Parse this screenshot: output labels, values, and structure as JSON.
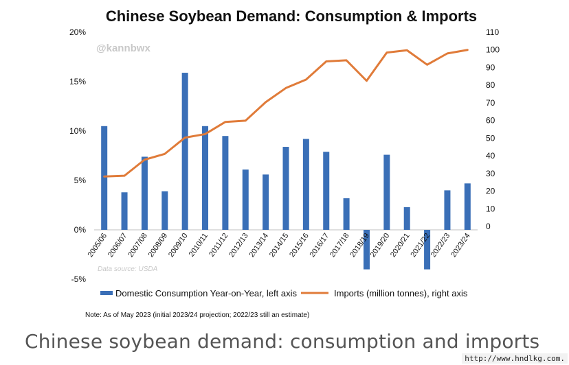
{
  "chart_data": {
    "type": "bar+line",
    "title": "Chinese Soybean Demand: Consumption & Imports",
    "watermark": "@kannbwx",
    "source": "Data source: USDA",
    "note": "Note: As of May 2023 (initial 2023/24 projection; 2022/23 still an estimate)",
    "categories": [
      "2005/06",
      "2006/07",
      "2007/08",
      "2008/09",
      "2009/10",
      "2010/11",
      "2011/12",
      "2012/13",
      "2013/14",
      "2014/15",
      "2015/16",
      "2016/17",
      "2017/18",
      "2018/19",
      "2019/20",
      "2020/21",
      "2021/22",
      "2022/23",
      "2023/24"
    ],
    "series": [
      {
        "name": "Domestic Consumption Year-on-Year, left axis",
        "type": "bar",
        "axis": "left",
        "color": "#3a6fb7",
        "values": [
          10.5,
          3.8,
          7.4,
          3.9,
          15.9,
          10.5,
          9.5,
          6.1,
          5.6,
          8.4,
          9.2,
          7.9,
          3.2,
          -4.0,
          7.6,
          2.3,
          -4.0,
          4.0,
          4.7
        ]
      },
      {
        "name": "Imports (million tonnes), right axis",
        "type": "line",
        "axis": "right",
        "color": "#e07b39",
        "values": [
          28.3,
          28.7,
          37.8,
          41.1,
          50.3,
          52.3,
          59.2,
          59.9,
          70.4,
          78.4,
          83.2,
          93.5,
          94.1,
          82.5,
          98.5,
          99.8,
          91.6,
          98.0,
          100.0
        ]
      }
    ],
    "left_axis": {
      "ylim": [
        -5,
        20
      ],
      "ticks": [
        "-5%",
        "0%",
        "5%",
        "10%",
        "15%",
        "20%"
      ],
      "tick_values": [
        -5,
        0,
        5,
        10,
        15,
        20
      ]
    },
    "right_axis": {
      "ylim": [
        0,
        110
      ],
      "ticks": [
        "0",
        "10",
        "20",
        "30",
        "40",
        "50",
        "60",
        "70",
        "80",
        "90",
        "100",
        "110"
      ],
      "tick_values": [
        0,
        10,
        20,
        30,
        40,
        50,
        60,
        70,
        80,
        90,
        100,
        110
      ]
    },
    "grid": false,
    "legend_position": "bottom"
  },
  "caption": "Chinese soybean demand: consumption and imports",
  "site_url": "http://www.hndlkg.com."
}
